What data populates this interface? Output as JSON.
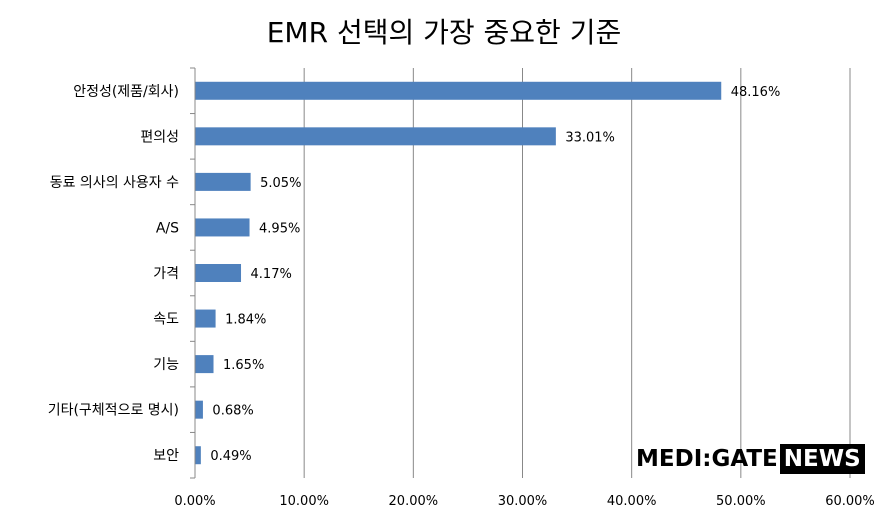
{
  "chart_data": {
    "type": "bar",
    "orientation": "horizontal",
    "title": "EMR 선택의 가장 중요한 기준",
    "categories": [
      "안정성(제품/회사)",
      "편의성",
      "동료 의사의 사용자 수",
      "A/S",
      "가격",
      "속도",
      "기능",
      "기타(구체적으로 명시)",
      "보안"
    ],
    "values": [
      48.16,
      33.01,
      5.05,
      4.95,
      4.17,
      1.84,
      1.65,
      0.68,
      0.49
    ],
    "value_labels": [
      "48.16%",
      "33.01%",
      "5.05%",
      "4.95%",
      "4.17%",
      "1.84%",
      "1.65%",
      "0.68%",
      "0.49%"
    ],
    "xlim": [
      0,
      60
    ],
    "x_ticks": [
      0,
      10,
      20,
      30,
      40,
      50,
      60
    ],
    "x_tick_labels": [
      "0.00%",
      "10.00%",
      "20.00%",
      "30.00%",
      "40.00%",
      "50.00%",
      "60.00%"
    ],
    "grid": "vertical",
    "bar_color": "#4f81bd",
    "legend": "none"
  },
  "brand": {
    "part1": "MEDI:GATE",
    "part2": "NEWS"
  }
}
